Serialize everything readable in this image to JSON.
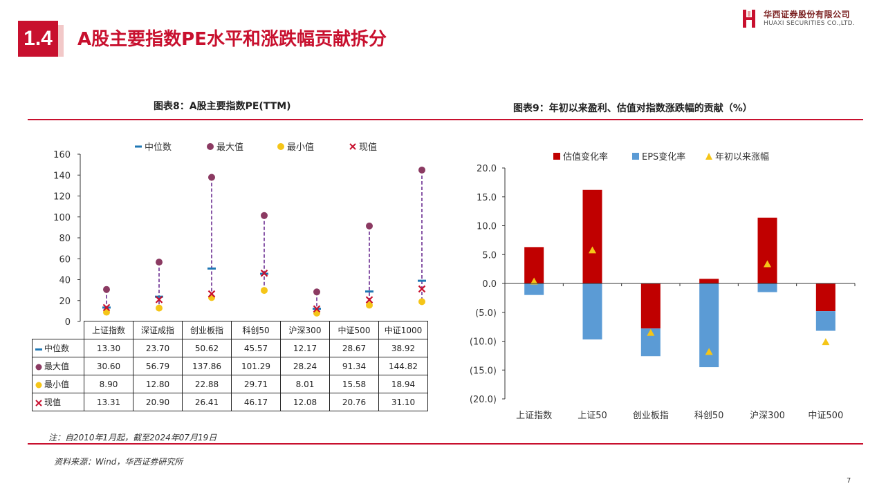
{
  "header": {
    "section_number": "1.4",
    "title": "A股主要指数PE水平和涨跌幅贡献拆分",
    "logo_cn": "华西证券股份有限公司",
    "logo_en": "HUAXI SECURITIES CO.,LTD."
  },
  "colors": {
    "brand_red": "#c8102e",
    "median": "#1f77b4",
    "max": "#8b3a62",
    "min": "#f5c518",
    "current": "#c8102e",
    "valuation": "#c00000",
    "eps": "#5b9bd5",
    "ytd": "#f5c518",
    "dash_line": "#6a2c91"
  },
  "chart_data": [
    {
      "type": "scatter",
      "title": "图表8：A股主要指数PE(TTM)",
      "categories": [
        "上证指数",
        "深证成指",
        "创业板指",
        "科创50",
        "沪深300",
        "中证500",
        "中证1000"
      ],
      "series": [
        {
          "name": "中位数",
          "marker": "dash",
          "values": [
            13.3,
            23.7,
            50.62,
            45.57,
            12.17,
            28.67,
            38.92
          ],
          "labels": [
            "13.30",
            "23.70",
            "50.62",
            "45.57",
            "12.17",
            "28.67",
            "38.92"
          ]
        },
        {
          "name": "最大值",
          "marker": "circle",
          "values": [
            30.6,
            56.79,
            137.86,
            101.29,
            28.24,
            91.34,
            144.82
          ],
          "labels": [
            "30.60",
            "56.79",
            "137.86",
            "101.29",
            "28.24",
            "91.34",
            "144.82"
          ]
        },
        {
          "name": "最小值",
          "marker": "circle",
          "values": [
            8.9,
            12.8,
            22.88,
            29.71,
            8.01,
            15.58,
            18.94
          ],
          "labels": [
            "8.90",
            "12.80",
            "22.88",
            "29.71",
            "8.01",
            "15.58",
            "18.94"
          ]
        },
        {
          "name": "现值",
          "marker": "x",
          "values": [
            13.31,
            20.9,
            26.41,
            46.17,
            12.08,
            20.76,
            31.1
          ],
          "labels": [
            "13.31",
            "20.90",
            "26.41",
            "46.17",
            "12.08",
            "20.76",
            "31.10"
          ]
        }
      ],
      "yticks": [
        "0",
        "20",
        "40",
        "60",
        "80",
        "100",
        "120",
        "140",
        "160"
      ],
      "ylim": [
        0,
        160
      ],
      "legend": "top"
    },
    {
      "type": "bar",
      "title": "图表9：年初以来盈利、估值对指数涨跌幅的贡献（%）",
      "categories": [
        "上证指数",
        "上证50",
        "创业板指",
        "科创50",
        "沪深300",
        "中证500"
      ],
      "series": [
        {
          "name": "估值变化率",
          "kind": "bar",
          "values": [
            6.3,
            16.2,
            -7.8,
            0.8,
            11.4,
            -4.8
          ]
        },
        {
          "name": "EPS变化率",
          "kind": "bar",
          "values": [
            -2.0,
            -9.7,
            -4.8,
            -14.5,
            -1.5,
            -3.4
          ]
        },
        {
          "name": "年初以来涨幅",
          "kind": "marker",
          "values": [
            0.3,
            5.7,
            -8.6,
            -11.9,
            3.3,
            -10.2
          ]
        }
      ],
      "stacked": true,
      "yticks": [
        "20.0",
        "15.0",
        "10.0",
        "5.0",
        "0.0",
        "(5.0)",
        "(10.0)",
        "(15.0)",
        "(20.0)"
      ],
      "ylim": [
        -20,
        20
      ],
      "legend": "top"
    }
  ],
  "note": "注：自2010年1月起，截至2024年07月19日",
  "source": "资料来源：Wind，华西证券研究所",
  "page_number": "7"
}
